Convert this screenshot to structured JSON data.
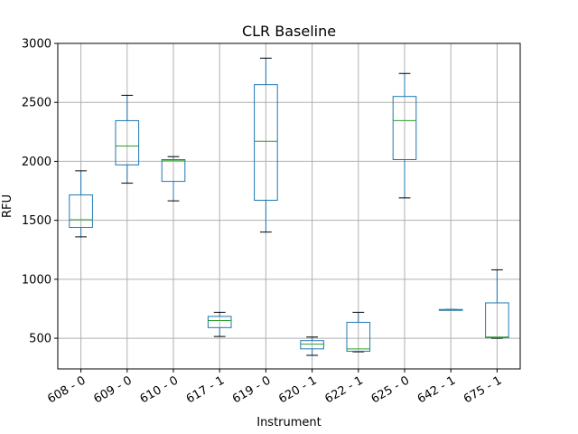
{
  "chart_data": {
    "type": "box",
    "title": "CLR Baseline",
    "xlabel": "Instrument",
    "ylabel": "RFU",
    "ylim": [
      240,
      3000
    ],
    "yticks": [
      500,
      1000,
      1500,
      2000,
      2500,
      3000
    ],
    "grid": true,
    "categories": [
      "608 - 0",
      "609 - 0",
      "610 - 0",
      "617 - 1",
      "619 - 0",
      "620 - 1",
      "622 - 1",
      "625 - 0",
      "642 - 1",
      "675 - 1"
    ],
    "boxes": [
      {
        "whisker_low": 1360,
        "q1": 1440,
        "median": 1505,
        "q3": 1715,
        "whisker_high": 1920
      },
      {
        "whisker_low": 1815,
        "q1": 1970,
        "median": 2130,
        "q3": 2345,
        "whisker_high": 2560
      },
      {
        "whisker_low": 1665,
        "q1": 1830,
        "median": 2005,
        "q3": 2015,
        "whisker_high": 2040
      },
      {
        "whisker_low": 515,
        "q1": 590,
        "median": 650,
        "q3": 685,
        "whisker_high": 720
      },
      {
        "whisker_low": 1400,
        "q1": 1670,
        "median": 2170,
        "q3": 2650,
        "whisker_high": 2875
      },
      {
        "whisker_low": 355,
        "q1": 410,
        "median": 450,
        "q3": 480,
        "whisker_high": 510
      },
      {
        "whisker_low": 385,
        "q1": 390,
        "median": 410,
        "q3": 635,
        "whisker_high": 720
      },
      {
        "whisker_low": 1690,
        "q1": 2015,
        "median": 2345,
        "q3": 2550,
        "whisker_high": 2745
      },
      {
        "whisker_low": 740,
        "q1": 740,
        "median": 742,
        "q3": 744,
        "whisker_high": 744
      },
      {
        "whisker_low": 500,
        "q1": 505,
        "median": 510,
        "q3": 800,
        "whisker_high": 1080
      }
    ],
    "colors": {
      "box": "#1f77b4",
      "median": "#2ca02c",
      "cap": "#000000",
      "grid": "#b0b0b0"
    }
  }
}
